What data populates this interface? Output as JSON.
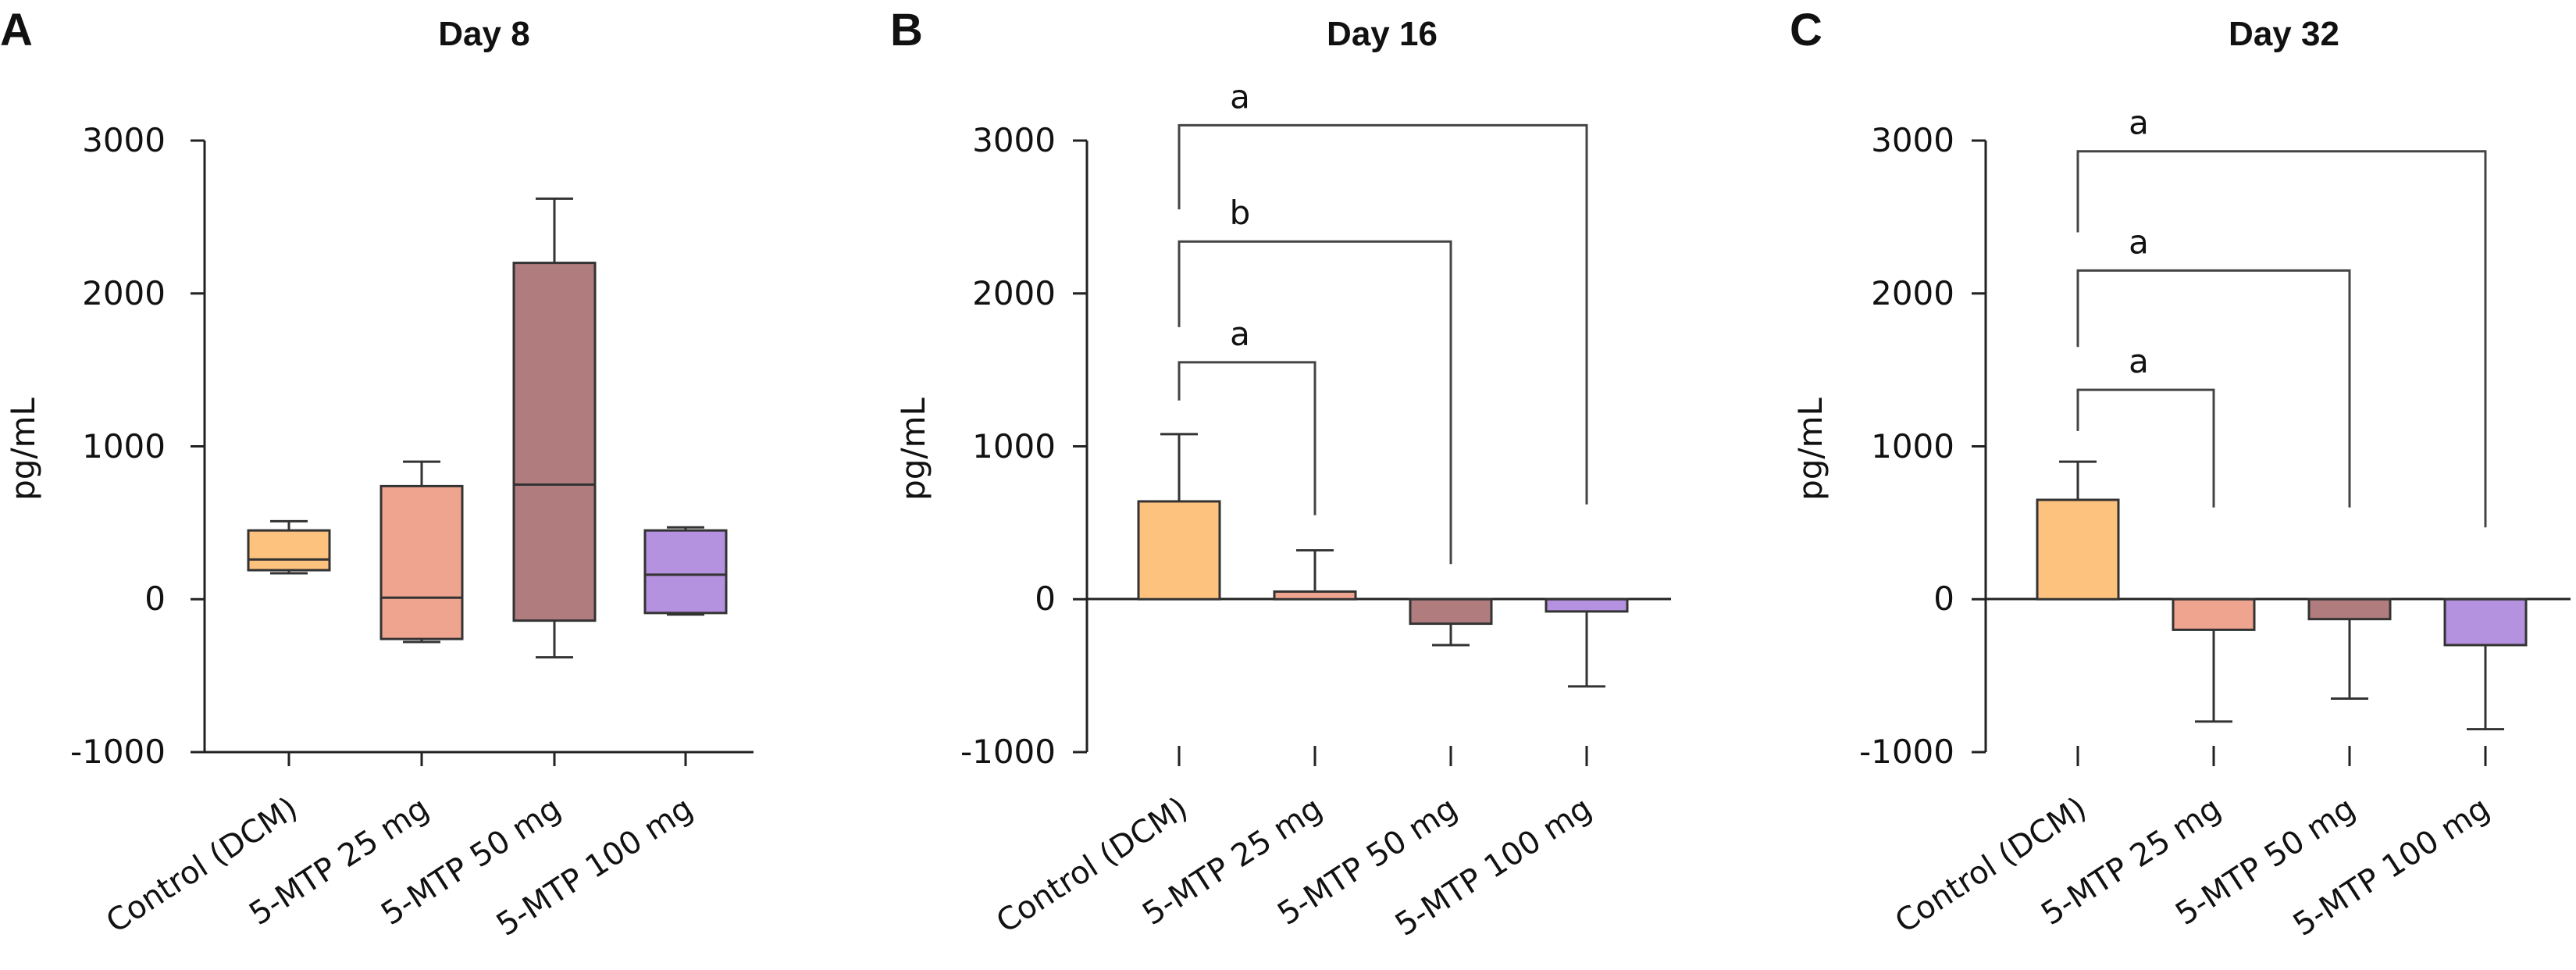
{
  "chart_data": [
    {
      "panel": "A",
      "type": "box",
      "title": "Day 8",
      "xlabel": "",
      "ylabel": "pg/mL",
      "ylim": [
        -1000,
        3000
      ],
      "yticks": [
        -1000,
        0,
        1000,
        2000,
        3000
      ],
      "categories": [
        "Control (DCM)",
        "5-MTP 25 mg",
        "5-MTP 50 mg",
        "5-MTP 100 mg"
      ],
      "colors": [
        "#FDC27E",
        "#EFA48F",
        "#B07C7E",
        "#B492DF"
      ],
      "boxes": [
        {
          "min": 170,
          "q1": 190,
          "median": 260,
          "q3": 450,
          "max": 510
        },
        {
          "min": -280,
          "q1": -260,
          "median": 10,
          "q3": 740,
          "max": 900
        },
        {
          "min": -380,
          "q1": -140,
          "median": 750,
          "q3": 2200,
          "max": 2620
        },
        {
          "min": -100,
          "q1": -90,
          "median": 160,
          "q3": 450,
          "max": 470
        }
      ]
    },
    {
      "panel": "B",
      "type": "bar",
      "title": "Day 16",
      "xlabel": "",
      "ylabel": "pg/mL",
      "ylim": [
        -1000,
        3000
      ],
      "yticks": [
        -1000,
        0,
        1000,
        2000,
        3000
      ],
      "categories": [
        "Control (DCM)",
        "5-MTP 25 mg",
        "5-MTP 50 mg",
        "5-MTP 100 mg"
      ],
      "colors": [
        "#FDC27E",
        "#EFA48F",
        "#B07C7E",
        "#B492DF"
      ],
      "values": [
        640,
        50,
        -160,
        -80
      ],
      "errors": [
        440,
        270,
        140,
        490
      ],
      "significance": [
        {
          "from": 0,
          "to": 1,
          "label": "a",
          "level": 1550,
          "start": 1300,
          "end": 550
        },
        {
          "from": 0,
          "to": 2,
          "label": "b",
          "level": 2340,
          "start": 1780,
          "end": 230
        },
        {
          "from": 0,
          "to": 3,
          "label": "a",
          "level": 3100,
          "start": 2550,
          "end": 620
        }
      ]
    },
    {
      "panel": "C",
      "type": "bar",
      "title": "Day 32",
      "xlabel": "",
      "ylabel": "pg/mL",
      "ylim": [
        -1000,
        3000
      ],
      "yticks": [
        -1000,
        0,
        1000,
        2000,
        3000
      ],
      "categories": [
        "Control (DCM)",
        "5-MTP 25 mg",
        "5-MTP 50 mg",
        "5-MTP 100 mg"
      ],
      "colors": [
        "#FDC27E",
        "#EFA48F",
        "#B07C7E",
        "#B492DF"
      ],
      "values": [
        650,
        -200,
        -130,
        -300
      ],
      "errors": [
        250,
        600,
        520,
        550
      ],
      "significance": [
        {
          "from": 0,
          "to": 1,
          "label": "a",
          "level": 1370,
          "start": 1100,
          "end": 600
        },
        {
          "from": 0,
          "to": 2,
          "label": "a",
          "level": 2150,
          "start": 1650,
          "end": 600
        },
        {
          "from": 0,
          "to": 3,
          "label": "a",
          "level": 2930,
          "start": 2400,
          "end": 470
        }
      ]
    }
  ]
}
